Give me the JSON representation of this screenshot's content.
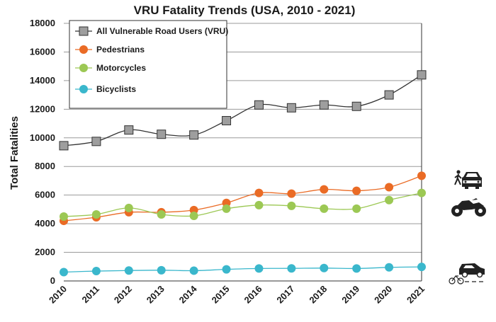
{
  "chart_data": {
    "type": "line",
    "title": "VRU Fatality Trends (USA, 2010 - 2021)",
    "xlabel": "",
    "ylabel": "Total Fatalities",
    "x": [
      2010,
      2011,
      2012,
      2013,
      2014,
      2015,
      2016,
      2017,
      2018,
      2019,
      2020,
      2021
    ],
    "ylim": [
      0,
      18000
    ],
    "yticks": [
      0,
      2000,
      4000,
      6000,
      8000,
      10000,
      12000,
      14000,
      16000,
      18000
    ],
    "grid": "horizontal",
    "legend_position": "top-left",
    "series": [
      {
        "name": "All Vulnerable Road Users (VRU)",
        "color": "#9e9e9e",
        "line_color": "#333333",
        "marker": "square",
        "values": [
          9450,
          9750,
          10550,
          10250,
          10200,
          11200,
          12300,
          12100,
          12300,
          12200,
          13000,
          14400
        ]
      },
      {
        "name": "Pedestrians",
        "color": "#ea6b25",
        "line_color": "#ea6b25",
        "marker": "circle",
        "values": [
          4200,
          4450,
          4800,
          4800,
          4950,
          5450,
          6150,
          6100,
          6400,
          6300,
          6550,
          7350
        ]
      },
      {
        "name": "Motorcycles",
        "color": "#9cc854",
        "line_color": "#9cc854",
        "marker": "circle",
        "values": [
          4500,
          4650,
          5100,
          4650,
          4550,
          5050,
          5300,
          5250,
          5050,
          5050,
          5650,
          6150
        ]
      },
      {
        "name": "Bicyclists",
        "color": "#3ab7cc",
        "line_color": "#3ab7cc",
        "marker": "circle",
        "values": [
          620,
          690,
          730,
          750,
          720,
          810,
          870,
          880,
          900,
          870,
          950,
          980
        ]
      }
    ],
    "icons": [
      "pedestrian-car-icon",
      "motorcycle-icon",
      "bicycle-car-icon"
    ]
  }
}
